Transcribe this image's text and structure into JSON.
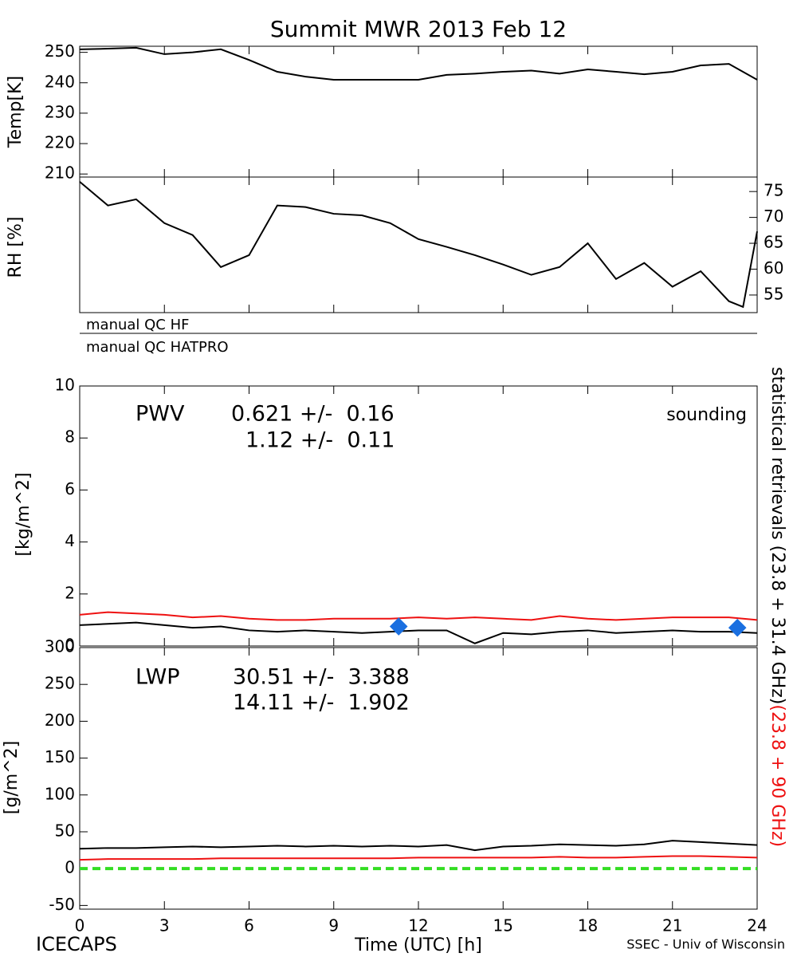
{
  "chart_data": [
    {
      "type": "line",
      "title": "Summit MWR 2013 Feb 12",
      "ylabel": "Temp[K]",
      "x": [
        0,
        1,
        2,
        3,
        4,
        5,
        6,
        7,
        8,
        9,
        10,
        11,
        12,
        13,
        14,
        15,
        16,
        17,
        18,
        19,
        20,
        21,
        22,
        23,
        24
      ],
      "series": [
        {
          "color": "#000000",
          "values": [
            251,
            251.2,
            251.5,
            249.4,
            250,
            251,
            247.5,
            243.6,
            242,
            241,
            241,
            241,
            241,
            242.6,
            243,
            243.6,
            244,
            243,
            244.4,
            243.6,
            242.8,
            243.6,
            245.7,
            246.2,
            241
          ]
        }
      ],
      "xlim": [
        0,
        24
      ],
      "ylim": [
        209,
        252
      ],
      "yticks": [
        210,
        220,
        230,
        240,
        250
      ],
      "y_axis": "left"
    },
    {
      "type": "line",
      "ylabel": "RH [%]",
      "x": [
        0,
        1,
        2,
        3,
        4,
        5,
        6,
        7,
        8,
        9,
        10,
        11,
        12,
        13,
        14,
        15,
        16,
        17,
        18,
        19,
        20,
        21,
        22,
        23,
        23.5,
        24
      ],
      "series": [
        {
          "color": "#000000",
          "values": [
            76.9,
            72.3,
            73.5,
            68.9,
            66.6,
            60.4,
            62.7,
            72.3,
            72,
            70.7,
            70.4,
            68.9,
            65.8,
            64.3,
            62.7,
            60.9,
            58.9,
            60.4,
            65,
            58.1,
            61.2,
            56.6,
            59.6,
            53.8,
            52.7,
            67.3
          ]
        }
      ],
      "xlim": [
        0,
        24
      ],
      "ylim": [
        51.6,
        77.8
      ],
      "yticks": [
        55,
        60,
        65,
        70,
        75
      ],
      "y_axis": "right"
    },
    {
      "type": "line",
      "ylabel": "[kg/m^2]",
      "x": [
        0,
        1,
        2,
        3,
        4,
        5,
        6,
        7,
        8,
        9,
        10,
        11,
        12,
        13,
        14,
        15,
        16,
        17,
        18,
        19,
        20,
        21,
        22,
        23,
        24
      ],
      "series": [
        {
          "color": "#000000",
          "values": [
            0.8,
            0.85,
            0.9,
            0.8,
            0.7,
            0.75,
            0.6,
            0.55,
            0.6,
            0.55,
            0.5,
            0.55,
            0.6,
            0.6,
            0.1,
            0.5,
            0.45,
            0.55,
            0.6,
            0.5,
            0.55,
            0.6,
            0.55,
            0.55,
            0.5
          ]
        },
        {
          "color": "#ee1111",
          "values": [
            1.2,
            1.3,
            1.25,
            1.2,
            1.1,
            1.15,
            1.05,
            1.0,
            1.0,
            1.05,
            1.05,
            1.05,
            1.1,
            1.05,
            1.1,
            1.05,
            1.0,
            1.15,
            1.05,
            1.0,
            1.05,
            1.1,
            1.1,
            1.1,
            1.0
          ]
        },
        {
          "type": "scatter",
          "name": "sounding",
          "color": "#1a6fe0",
          "x": [
            11.3,
            23.3
          ],
          "values": [
            0.75,
            0.7
          ]
        }
      ],
      "annotations": [
        {
          "text": "PWV",
          "color": "#000000"
        },
        {
          "text": "0.621 +/-  0.16",
          "color": "#000000"
        },
        {
          "text": "1.12 +/-  0.11",
          "color": "#ee1111"
        }
      ],
      "xlim": [
        0,
        24
      ],
      "ylim": [
        0,
        10
      ],
      "yticks": [
        0,
        2,
        4,
        6,
        8,
        10
      ],
      "y_axis": "left"
    },
    {
      "type": "line",
      "ylabel": "[g/m^2]",
      "xlabel": "Time (UTC) [h]",
      "x": [
        0,
        1,
        2,
        3,
        4,
        5,
        6,
        7,
        8,
        9,
        10,
        11,
        12,
        13,
        14,
        15,
        16,
        17,
        18,
        19,
        20,
        21,
        22,
        23,
        24
      ],
      "series": [
        {
          "color": "#000000",
          "values": [
            27,
            28,
            28,
            29,
            30,
            29,
            30,
            31,
            30,
            31,
            30,
            31,
            30,
            32,
            25,
            30,
            31,
            33,
            32,
            31,
            33,
            38,
            36,
            34,
            32
          ]
        },
        {
          "color": "#ee1111",
          "values": [
            12,
            13,
            13,
            13,
            13,
            14,
            14,
            14,
            14,
            14,
            14,
            14,
            15,
            15,
            15,
            15,
            15,
            16,
            15,
            15,
            16,
            17,
            17,
            16,
            15
          ]
        }
      ],
      "hline": {
        "value": 0,
        "color": "#33dd22"
      },
      "annotations": [
        {
          "text": "LWP",
          "color": "#000000"
        },
        {
          "text": "30.51 +/-  3.388",
          "color": "#000000"
        },
        {
          "text": "14.11 +/-  1.902",
          "color": "#ee1111"
        }
      ],
      "xlim": [
        0,
        24
      ],
      "xticks": [
        0,
        3,
        6,
        9,
        12,
        15,
        18,
        21,
        24
      ],
      "ylim": [
        -55,
        300
      ],
      "yticks": [
        -50,
        0,
        50,
        100,
        150,
        200,
        250,
        300
      ],
      "y_axis": "left"
    }
  ],
  "qc_labels": [
    "manual QC HF",
    "manual QC HATPRO"
  ],
  "side_label": [
    {
      "text": "statistical retrievals (23.8 + 31.4 GHz)",
      "color": "#000000"
    },
    {
      "text": "(23.8 + 90 GHz)",
      "color": "#ee1111"
    }
  ],
  "footer": {
    "left": "ICECAPS",
    "right": "SSEC - Univ of Wisconsin"
  }
}
